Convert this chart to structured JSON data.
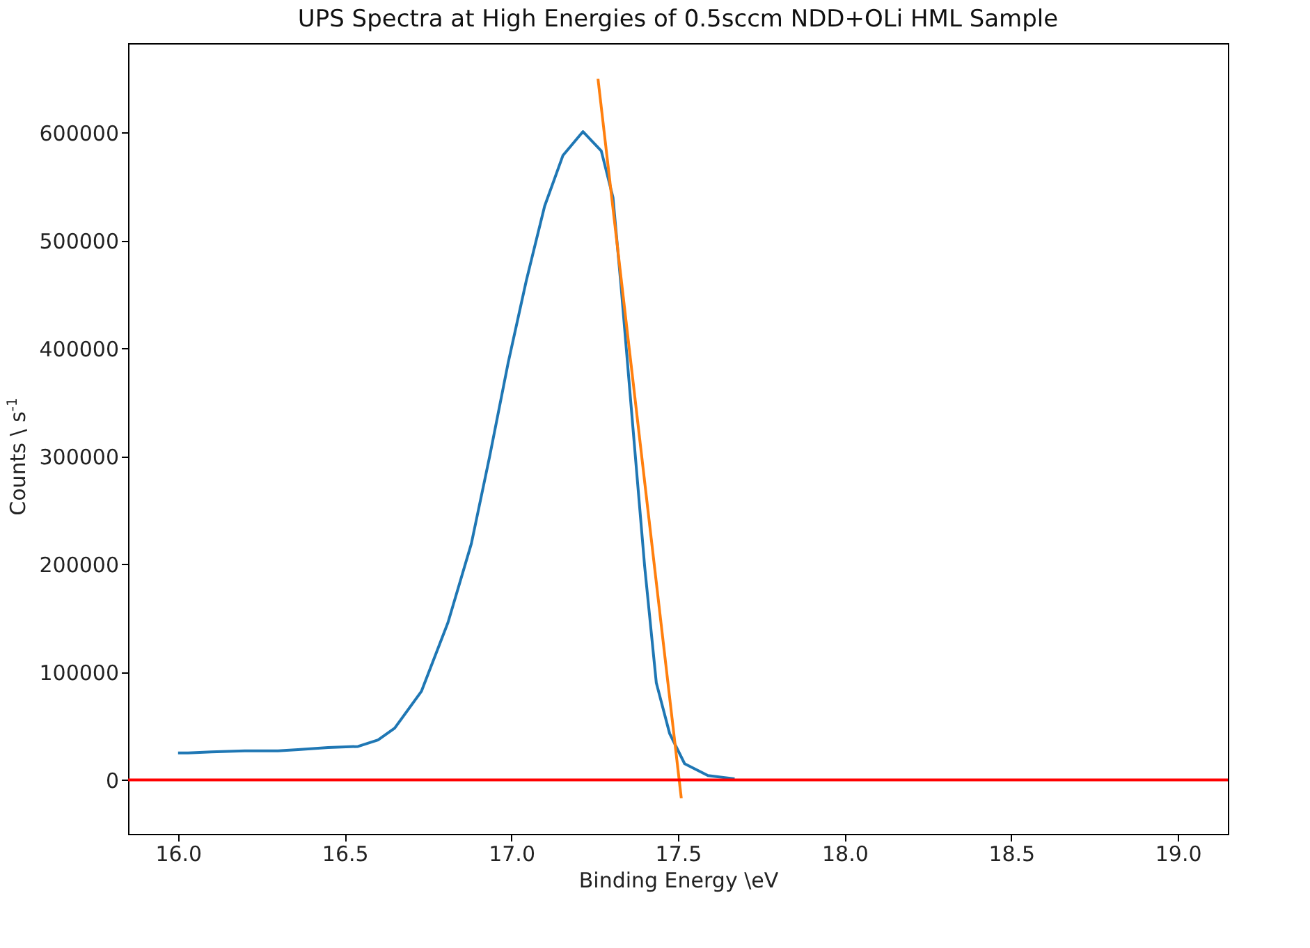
{
  "chart_data": {
    "type": "line",
    "title": "UPS Spectra at High Energies of 0.5sccm NDD+OLi HML Sample",
    "xlabel": "Binding Energy \\eV",
    "ylabel": "Counts \\ s$^{-1}$",
    "series": [
      {
        "color": "#1f77b4",
        "x": [
          16.0,
          16.03,
          16.1,
          16.2,
          16.3,
          16.36,
          16.45,
          16.54,
          16.6,
          16.65,
          16.73,
          16.81,
          16.88,
          16.935,
          16.99,
          17.045,
          17.1,
          17.155,
          17.215,
          17.27,
          17.305,
          17.33,
          17.365,
          17.4,
          17.435,
          17.475,
          17.52,
          17.59,
          17.67
        ],
        "values": [
          25000,
          25000,
          26000,
          27000,
          27000,
          28000,
          30000,
          31000,
          37000,
          48000,
          82000,
          146000,
          219000,
          300000,
          386000,
          463000,
          532000,
          579000,
          601000,
          583000,
          540000,
          455000,
          326000,
          198000,
          90000,
          43000,
          15000,
          4000,
          1000
        ]
      },
      {
        "color": "#ff7f0e",
        "x": [
          17.26,
          17.51
        ],
        "values": [
          650000,
          -17000
        ]
      }
    ],
    "ref_lines": [
      {
        "axis": "y",
        "value": 0,
        "color": "#ff0000"
      }
    ],
    "xlim": [
      15.85,
      19.15
    ],
    "ylim": [
      -50000,
      683000
    ],
    "xticks": [
      {
        "value": 16,
        "label": "16.0"
      },
      {
        "value": 16.5,
        "label": "16.5"
      },
      {
        "value": 17,
        "label": "17.0"
      },
      {
        "value": 17.5,
        "label": "17.5"
      },
      {
        "value": 18,
        "label": "18.0"
      },
      {
        "value": 18.5,
        "label": "18.5"
      },
      {
        "value": 19,
        "label": "19.0"
      }
    ],
    "yticks": [
      0,
      100000,
      200000,
      300000,
      400000,
      500000,
      600000
    ],
    "grid": false
  }
}
